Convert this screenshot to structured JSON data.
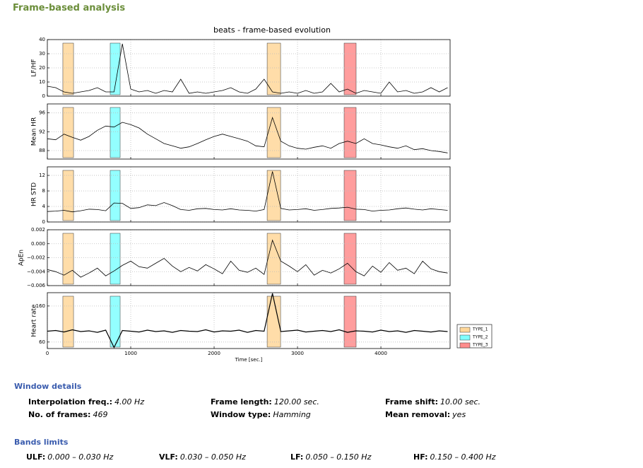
{
  "header": {
    "title": "Frame-based analysis"
  },
  "chart_data": [
    {
      "type": "line",
      "title": "beats - frame-based evolution",
      "ylabel": "LF/HF",
      "color": "#000000",
      "grid": true,
      "x": [
        0,
        100,
        200,
        300,
        400,
        500,
        600,
        700,
        800,
        900,
        1000,
        1100,
        1200,
        1300,
        1400,
        1500,
        1600,
        1700,
        1800,
        1900,
        2000,
        2100,
        2200,
        2300,
        2400,
        2500,
        2600,
        2700,
        2800,
        2900,
        3000,
        3100,
        3200,
        3300,
        3400,
        3500,
        3600,
        3700,
        3800,
        3900,
        4000,
        4100,
        4200,
        4300,
        4400,
        4500,
        4600,
        4700,
        4800
      ],
      "values": [
        7,
        6,
        3,
        2,
        3,
        4,
        6,
        3,
        3,
        37,
        5,
        3,
        4,
        2,
        4,
        3,
        12,
        2,
        3,
        2,
        3,
        4,
        6,
        3,
        2,
        5,
        12,
        3,
        2,
        3,
        2,
        4,
        2,
        3,
        9,
        3,
        5,
        2,
        4,
        3,
        2,
        10,
        3,
        4,
        2,
        3,
        6,
        3,
        6
      ],
      "xlim": [
        0,
        4830
      ],
      "xticks": [
        0,
        1000,
        2000,
        3000,
        4000
      ],
      "ylim": [
        0,
        40
      ],
      "yticks": [
        0,
        10,
        20,
        30,
        40
      ]
    },
    {
      "type": "line",
      "ylabel": "Mean HR",
      "color": "#000000",
      "grid": true,
      "x": [
        0,
        100,
        200,
        300,
        400,
        500,
        600,
        700,
        800,
        900,
        1000,
        1100,
        1200,
        1300,
        1400,
        1500,
        1600,
        1700,
        1800,
        1900,
        2000,
        2100,
        2200,
        2300,
        2400,
        2500,
        2600,
        2700,
        2800,
        2900,
        3000,
        3100,
        3200,
        3300,
        3400,
        3500,
        3600,
        3700,
        3800,
        3900,
        4000,
        4100,
        4200,
        4300,
        4400,
        4500,
        4600,
        4700,
        4800
      ],
      "values": [
        90.5,
        90.3,
        91.5,
        90.8,
        90.2,
        91,
        92.3,
        93.2,
        93,
        94,
        93.5,
        92.8,
        91.5,
        90.5,
        89.5,
        89,
        88.5,
        88.8,
        89.5,
        90.3,
        91,
        91.5,
        91,
        90.5,
        90,
        89,
        88.8,
        95,
        90,
        89,
        88.5,
        88.3,
        88.7,
        89,
        88.5,
        89.5,
        90,
        89.5,
        90.5,
        89.5,
        89.2,
        88.8,
        88.5,
        89,
        88.2,
        88.4,
        88,
        87.8,
        87.5
      ],
      "xlim": [
        0,
        4830
      ],
      "xticks": [
        0,
        1000,
        2000,
        3000,
        4000
      ],
      "ylim": [
        86.2,
        97.9
      ],
      "yticks": [
        88,
        92,
        96
      ]
    },
    {
      "type": "line",
      "ylabel": "HR STD",
      "color": "#000000",
      "grid": true,
      "x": [
        0,
        100,
        200,
        300,
        400,
        500,
        600,
        700,
        800,
        900,
        1000,
        1100,
        1200,
        1300,
        1400,
        1500,
        1600,
        1700,
        1800,
        1900,
        2000,
        2100,
        2200,
        2300,
        2400,
        2500,
        2600,
        2700,
        2800,
        2900,
        3000,
        3100,
        3200,
        3300,
        3400,
        3500,
        3600,
        3700,
        3800,
        3900,
        4000,
        4100,
        4200,
        4300,
        4400,
        4500,
        4600,
        4700,
        4800
      ],
      "values": [
        2.7,
        2.8,
        3,
        2.6,
        2.9,
        3.3,
        3.2,
        2.9,
        4.9,
        4.8,
        3.5,
        3.7,
        4.4,
        4.2,
        5,
        4.2,
        3.2,
        3,
        3.4,
        3.5,
        3.2,
        3.1,
        3.4,
        3.1,
        3,
        2.8,
        3.2,
        13,
        3.5,
        3.1,
        3.2,
        3.4,
        3,
        3.2,
        3.5,
        3.6,
        3.8,
        3.3,
        3.2,
        2.8,
        3,
        3.1,
        3.4,
        3.6,
        3.3,
        3.1,
        3.4,
        3.2,
        3
      ],
      "xlim": [
        0,
        4830
      ],
      "xticks": [
        0,
        1000,
        2000,
        3000,
        4000
      ],
      "ylim": [
        0,
        14.2
      ],
      "yticks": [
        0,
        4,
        8,
        12
      ]
    },
    {
      "type": "line",
      "ylabel": "ApEn",
      "color": "#000000",
      "grid": true,
      "x": [
        0,
        100,
        200,
        300,
        400,
        500,
        600,
        700,
        800,
        900,
        1000,
        1100,
        1200,
        1300,
        1400,
        1500,
        1600,
        1700,
        1800,
        1900,
        2000,
        2100,
        2200,
        2300,
        2400,
        2500,
        2600,
        2700,
        2800,
        2900,
        3000,
        3100,
        3200,
        3300,
        3400,
        3500,
        3600,
        3700,
        3800,
        3900,
        4000,
        4100,
        4200,
        4300,
        4400,
        4500,
        4600,
        4700,
        4800
      ],
      "values": [
        -0.0037,
        -0.004,
        -0.0045,
        -0.0038,
        -0.0048,
        -0.0042,
        -0.0035,
        -0.0046,
        -0.0039,
        -0.0031,
        -0.0025,
        -0.0033,
        -0.0035,
        -0.0028,
        -0.0021,
        -0.0032,
        -0.004,
        -0.0034,
        -0.0039,
        -0.003,
        -0.0036,
        -0.0043,
        -0.0025,
        -0.0038,
        -0.0041,
        -0.0035,
        -0.0044,
        0.0005,
        -0.0025,
        -0.0032,
        -0.004,
        -0.003,
        -0.0045,
        -0.0038,
        -0.0042,
        -0.0036,
        -0.0028,
        -0.004,
        -0.0046,
        -0.0032,
        -0.0041,
        -0.0027,
        -0.0038,
        -0.0035,
        -0.0043,
        -0.0025,
        -0.0036,
        -0.004,
        -0.0042
      ],
      "xlim": [
        0,
        4830
      ],
      "xticks": [
        0,
        1000,
        2000,
        3000,
        4000
      ],
      "ylim": [
        -0.006,
        0.002
      ],
      "yticks": [
        {
          "value": -0.006,
          "label": "−0.006"
        },
        {
          "value": -0.004,
          "label": "−0.004"
        },
        {
          "value": -0.002,
          "label": "−0.002"
        },
        {
          "value": 0,
          "label": "0.000"
        },
        0.002
      ]
    },
    {
      "type": "line",
      "ylabel": "Heart rate",
      "xlabel": "Time [sec.]",
      "color": "#000000",
      "grid": true,
      "x": [
        0,
        100,
        200,
        300,
        400,
        500,
        600,
        700,
        800,
        900,
        1000,
        1100,
        1200,
        1300,
        1400,
        1500,
        1600,
        1700,
        1800,
        1900,
        2000,
        2100,
        2200,
        2300,
        2400,
        2500,
        2600,
        2700,
        2800,
        2900,
        3000,
        3100,
        3200,
        3300,
        3400,
        3500,
        3600,
        3700,
        3800,
        3900,
        4000,
        4100,
        4200,
        4300,
        4400,
        4500,
        4600,
        4700,
        4800
      ],
      "values": [
        90,
        92,
        88,
        94,
        89,
        91,
        87,
        93,
        45,
        92,
        90,
        88,
        93,
        89,
        91,
        87,
        92,
        90,
        89,
        94,
        88,
        91,
        90,
        93,
        87,
        92,
        90,
        195,
        89,
        91,
        93,
        88,
        90,
        92,
        89,
        94,
        87,
        91,
        90,
        88,
        93,
        89,
        91,
        87,
        92,
        90,
        88,
        91,
        89
      ],
      "xlim": [
        0,
        4830
      ],
      "xticks": [
        0,
        1000,
        2000,
        3000,
        4000
      ],
      "ylim": [
        42,
        197
      ],
      "yticks": [
        60,
        160
      ]
    }
  ],
  "events": [
    {
      "name": "TYPE_1",
      "color": "#ffd79a",
      "spans": [
        [
          186,
          314
        ],
        [
          2636,
          2797
        ]
      ]
    },
    {
      "name": "TYPE_2",
      "color": "#80ffff",
      "spans": [
        [
          754,
          873
        ]
      ]
    },
    {
      "name": "TYPE_3",
      "color": "#ff8c8c",
      "spans": [
        [
          3559,
          3703
        ]
      ]
    }
  ],
  "window_details": {
    "title": "Window details",
    "items": [
      {
        "label": "Interpolation freq.:",
        "value": "4.00 Hz"
      },
      {
        "label": "Frame length:",
        "value": "120.00 sec."
      },
      {
        "label": "Frame shift:",
        "value": "10.00 sec."
      },
      {
        "label": "No. of frames:",
        "value": "469"
      },
      {
        "label": "Window type:",
        "value": "Hamming"
      },
      {
        "label": "Mean removal:",
        "value": "yes"
      }
    ]
  },
  "bands_limits": {
    "title": "Bands limits",
    "items": [
      {
        "label": "ULF:",
        "value": "0.000 – 0.030 Hz"
      },
      {
        "label": "VLF:",
        "value": "0.030 – 0.050 Hz"
      },
      {
        "label": "LF:",
        "value": "0.050 – 0.150 Hz"
      },
      {
        "label": "HF:",
        "value": "0.150 – 0.400 Hz"
      }
    ]
  }
}
